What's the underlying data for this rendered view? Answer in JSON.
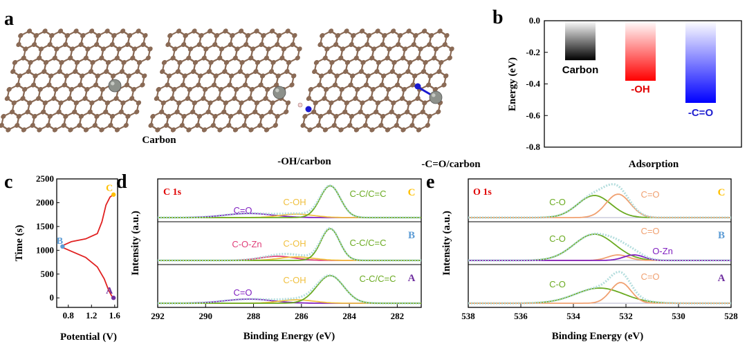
{
  "panels": {
    "a": {
      "label": "a",
      "structures": [
        {
          "caption": "Carbon"
        },
        {
          "caption": "-OH/carbon"
        },
        {
          "caption": "-C=O/carbon"
        }
      ],
      "colors": {
        "carbon": "#8a6a55",
        "metal": "#8d918b",
        "oxygen": "#1a1ad0",
        "hydrogen": "#f4d6d6"
      }
    },
    "b": {
      "label": "b"
    },
    "c": {
      "label": "c"
    },
    "d": {
      "label": "d",
      "region": "C 1s"
    },
    "e": {
      "label": "e",
      "region": "O 1s"
    }
  },
  "chart_data": [
    {
      "panel": "b",
      "type": "bar",
      "ylabel": "Energy (eV)",
      "xlabel": "Adsorption",
      "ylim": [
        -0.8,
        0.0
      ],
      "yticks": [
        "0.0",
        "-0.2",
        "-0.4",
        "-0.6",
        "-0.8"
      ],
      "categories": [
        "Carbon",
        "-OH",
        "-C=O"
      ],
      "values": [
        -0.25,
        -0.38,
        -0.52
      ],
      "colors": [
        "#000000",
        "#ff0000",
        "#0000ff"
      ]
    },
    {
      "panel": "c",
      "type": "line",
      "ylabel": "Time (s)",
      "xlabel": "Potential (V)",
      "ylim": [
        -200,
        2500
      ],
      "xlim": [
        0.6,
        1.65
      ],
      "yticks": [
        "0",
        "500",
        "1000",
        "1500",
        "2000",
        "2500"
      ],
      "xticks": [
        "0.8",
        "1.2",
        "1.6"
      ],
      "points": [
        {
          "label": "A",
          "x": 1.58,
          "y": 0,
          "color": "#7030a0"
        },
        {
          "label": "B",
          "x": 0.7,
          "y": 1080,
          "color": "#5b9bd5"
        },
        {
          "label": "C",
          "x": 1.58,
          "y": 2170,
          "color": "#ffc000"
        }
      ],
      "curve_x": [
        1.58,
        1.55,
        1.5,
        1.42,
        1.3,
        1.1,
        0.85,
        0.72,
        0.7,
        0.72,
        0.85,
        1.1,
        1.3,
        1.38,
        1.45,
        1.52,
        1.58
      ],
      "curve_y": [
        0,
        40,
        150,
        400,
        650,
        850,
        980,
        1050,
        1080,
        1110,
        1180,
        1240,
        1350,
        1600,
        1950,
        2120,
        2170
      ],
      "line_color": "#e02020"
    },
    {
      "panel": "d",
      "type": "line",
      "xlabel": "Binding Energy (eV)",
      "ylabel": "Intensity (a.u.)",
      "xlim": [
        292,
        281
      ],
      "xticks": [
        "292",
        "290",
        "288",
        "286",
        "284",
        "282"
      ],
      "spectra": [
        {
          "sample": "C",
          "peaks": [
            {
              "name": "C=O",
              "x": 288.2
            },
            {
              "name": "C-OH",
              "x": 286.2
            },
            {
              "name": "C-C/C=C",
              "x": 284.8
            }
          ]
        },
        {
          "sample": "B",
          "peaks": [
            {
              "name": "C-O-Zn",
              "x": 287.0
            },
            {
              "name": "C-OH",
              "x": 286.2
            },
            {
              "name": "C-C/C=C",
              "x": 284.8
            }
          ]
        },
        {
          "sample": "A",
          "peaks": [
            {
              "name": "C=O",
              "x": 288.2
            },
            {
              "name": "C-OH",
              "x": 286.2
            },
            {
              "name": "C-C/C=C",
              "x": 284.8
            }
          ]
        }
      ],
      "colors": {
        "C=O": "#8020c0",
        "C-OH": "#f0c040",
        "C-C/C=C": "#6aaa20",
        "C-O-Zn": "#e0407a",
        "envelope": "#a8d8d8"
      }
    },
    {
      "panel": "e",
      "type": "line",
      "xlabel": "Binding Energy (eV)",
      "ylabel": "Intensity (a.u.)",
      "xlim": [
        538,
        528
      ],
      "xticks": [
        "538",
        "536",
        "534",
        "532",
        "530",
        "528"
      ],
      "spectra": [
        {
          "sample": "C",
          "peaks": [
            {
              "name": "C-O",
              "x": 533.2
            },
            {
              "name": "C=O",
              "x": 532.3
            }
          ]
        },
        {
          "sample": "B",
          "peaks": [
            {
              "name": "C-O",
              "x": 533.2
            },
            {
              "name": "C=O",
              "x": 532.3
            },
            {
              "name": "O-Zn",
              "x": 531.7
            }
          ]
        },
        {
          "sample": "A",
          "peaks": [
            {
              "name": "C-O",
              "x": 533.0
            },
            {
              "name": "C=O",
              "x": 532.2
            }
          ]
        }
      ],
      "colors": {
        "C-O": "#6aaa20",
        "C=O": "#f0a070",
        "O-Zn": "#8020c0",
        "envelope": "#a8d8d8"
      }
    }
  ]
}
